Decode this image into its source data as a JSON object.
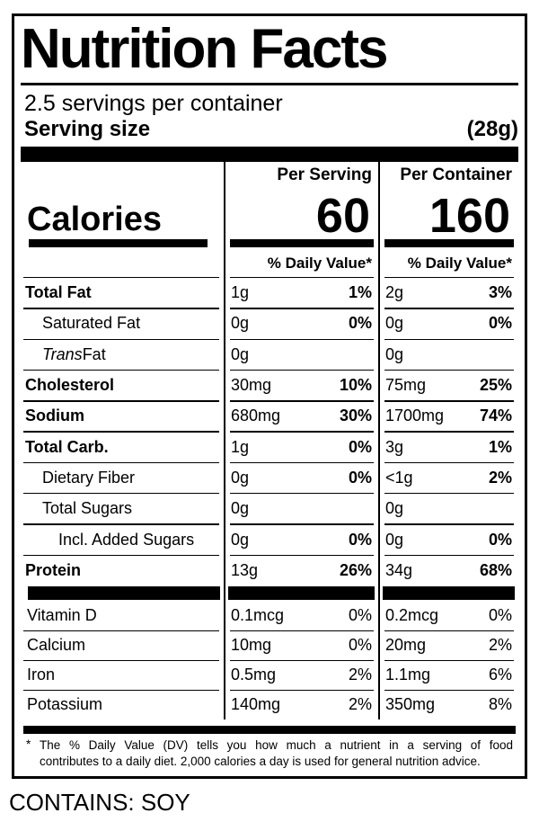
{
  "colors": {
    "text": "#000000",
    "background": "#ffffff"
  },
  "label": {
    "title": "Nutrition Facts",
    "servings_per_container": "2.5 servings per container",
    "serving_size": {
      "label": "Serving size",
      "value": "(28g)"
    },
    "column_headers": {
      "serving": "Per Serving",
      "container": "Per Container"
    },
    "calories": {
      "label": "Calories",
      "per_serving": "60",
      "per_container": "160"
    },
    "daily_value_header": "% Daily Value*",
    "nutrients": [
      {
        "name": "Total Fat",
        "bold": true,
        "indent": 0,
        "italic_first_word": false,
        "serving": {
          "amount": "1g",
          "dv": "1%"
        },
        "container": {
          "amount": "2g",
          "dv": "3%"
        }
      },
      {
        "name": "Saturated Fat",
        "bold": false,
        "indent": 1,
        "italic_first_word": false,
        "serving": {
          "amount": "0g",
          "dv": "0%"
        },
        "container": {
          "amount": "0g",
          "dv": "0%"
        }
      },
      {
        "name": "Trans Fat",
        "bold": false,
        "indent": 1,
        "italic_first_word": true,
        "serving": {
          "amount": "0g",
          "dv": ""
        },
        "container": {
          "amount": "0g",
          "dv": ""
        }
      },
      {
        "name": "Cholesterol",
        "bold": true,
        "indent": 0,
        "italic_first_word": false,
        "serving": {
          "amount": "30mg",
          "dv": "10%"
        },
        "container": {
          "amount": "75mg",
          "dv": "25%"
        }
      },
      {
        "name": "Sodium",
        "bold": true,
        "indent": 0,
        "italic_first_word": false,
        "serving": {
          "amount": "680mg",
          "dv": "30%"
        },
        "container": {
          "amount": "1700mg",
          "dv": "74%"
        }
      },
      {
        "name": "Total Carb.",
        "bold": true,
        "indent": 0,
        "italic_first_word": false,
        "serving": {
          "amount": "1g",
          "dv": "0%"
        },
        "container": {
          "amount": "3g",
          "dv": "1%"
        }
      },
      {
        "name": "Dietary Fiber",
        "bold": false,
        "indent": 1,
        "italic_first_word": false,
        "serving": {
          "amount": "0g",
          "dv": "0%"
        },
        "container": {
          "amount": "<1g",
          "dv": "2%"
        }
      },
      {
        "name": "Total Sugars",
        "bold": false,
        "indent": 1,
        "italic_first_word": false,
        "serving": {
          "amount": "0g",
          "dv": ""
        },
        "container": {
          "amount": "0g",
          "dv": ""
        }
      },
      {
        "name": "Incl. Added Sugars",
        "bold": false,
        "indent": 2,
        "italic_first_word": false,
        "serving": {
          "amount": "0g",
          "dv": "0%"
        },
        "container": {
          "amount": "0g",
          "dv": "0%"
        }
      },
      {
        "name": "Protein",
        "bold": true,
        "indent": 0,
        "italic_first_word": false,
        "serving": {
          "amount": "13g",
          "dv": "26%"
        },
        "container": {
          "amount": "34g",
          "dv": "68%"
        }
      }
    ],
    "vitamins": [
      {
        "name": "Vitamin D",
        "serving": {
          "amount": "0.1mcg",
          "dv": "0%"
        },
        "container": {
          "amount": "0.2mcg",
          "dv": "0%"
        }
      },
      {
        "name": "Calcium",
        "serving": {
          "amount": "10mg",
          "dv": "0%"
        },
        "container": {
          "amount": "20mg",
          "dv": "2%"
        }
      },
      {
        "name": "Iron",
        "serving": {
          "amount": "0.5mg",
          "dv": "2%"
        },
        "container": {
          "amount": "1.1mg",
          "dv": "6%"
        }
      },
      {
        "name": "Potassium",
        "serving": {
          "amount": "140mg",
          "dv": "2%"
        },
        "container": {
          "amount": "350mg",
          "dv": "8%"
        }
      }
    ],
    "footnote": {
      "marker": "*",
      "line1": "The % Daily Value (DV) tells you how much a nutrient in a serving of food",
      "line2": "contributes to a daily diet. 2,000 calories a day is used for general nutrition advice."
    }
  },
  "contains_statement": "CONTAINS: SOY"
}
